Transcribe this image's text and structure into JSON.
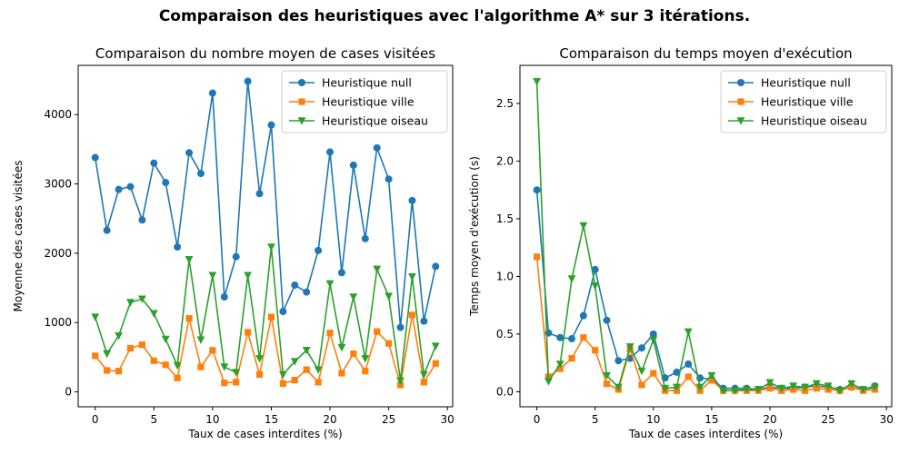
{
  "figure": {
    "suptitle": "Comparaison des heuristiques avec l'algorithme A* sur 3 itérations."
  },
  "chart_data": [
    {
      "type": "line",
      "title": "Comparaison du nombre moyen de cases visitées",
      "xlabel": "Taux de cases interdites (%)",
      "ylabel": "Moyenne des cases visitées",
      "x": [
        0,
        1,
        2,
        3,
        4,
        5,
        6,
        7,
        8,
        9,
        10,
        11,
        12,
        13,
        14,
        15,
        16,
        17,
        18,
        19,
        20,
        21,
        22,
        23,
        24,
        25,
        26,
        27,
        28,
        29
      ],
      "xlim": [
        -1.45,
        30.45
      ],
      "ylim": [
        -215,
        4710
      ],
      "xticks": [
        0,
        5,
        10,
        15,
        20,
        25,
        30
      ],
      "yticks": [
        0,
        1000,
        2000,
        3000,
        4000
      ],
      "legend": "top-right",
      "grid": false,
      "series": [
        {
          "name": "Heuristique null",
          "color": "#1f77b4",
          "marker": "circle",
          "values": [
            3380,
            2330,
            2920,
            2960,
            2480,
            3300,
            3020,
            2090,
            3450,
            3150,
            4310,
            1370,
            1950,
            4480,
            2860,
            3850,
            1160,
            1540,
            1440,
            2040,
            3460,
            1720,
            3270,
            2210,
            3520,
            3070,
            930,
            2760,
            1020,
            1810
          ]
        },
        {
          "name": "Heuristique ville",
          "color": "#ff7f0e",
          "marker": "square",
          "values": [
            520,
            310,
            300,
            630,
            680,
            450,
            390,
            200,
            1060,
            360,
            600,
            130,
            140,
            860,
            250,
            1080,
            120,
            170,
            320,
            140,
            850,
            270,
            550,
            300,
            870,
            700,
            100,
            1110,
            140,
            410
          ]
        },
        {
          "name": "Heuristique oiseau",
          "color": "#2ca02c",
          "marker": "triangle-down",
          "values": [
            1080,
            550,
            810,
            1290,
            1340,
            1130,
            760,
            380,
            1910,
            750,
            1680,
            360,
            280,
            1680,
            480,
            2090,
            250,
            440,
            600,
            320,
            1560,
            640,
            1370,
            480,
            1770,
            1380,
            160,
            1660,
            250,
            660
          ]
        }
      ]
    },
    {
      "type": "line",
      "title": "Comparaison du temps moyen d'exécution",
      "xlabel": "Taux de cases interdites (%)",
      "ylabel": "Temps moyen d'exécution (s)",
      "x": [
        0,
        1,
        2,
        3,
        4,
        5,
        6,
        7,
        8,
        9,
        10,
        11,
        12,
        13,
        14,
        15,
        16,
        17,
        18,
        19,
        20,
        21,
        22,
        23,
        24,
        25,
        26,
        27,
        28,
        29
      ],
      "xlim": [
        -1.45,
        30.45
      ],
      "ylim": [
        -0.13,
        2.83
      ],
      "xticks": [
        0,
        5,
        10,
        15,
        20,
        25,
        30
      ],
      "yticks": [
        0.0,
        0.5,
        1.0,
        1.5,
        2.0,
        2.5
      ],
      "legend": "top-right",
      "grid": false,
      "series": [
        {
          "name": "Heuristique null",
          "color": "#1f77b4",
          "marker": "circle",
          "values": [
            1.75,
            0.51,
            0.47,
            0.46,
            0.66,
            1.06,
            0.62,
            0.27,
            0.29,
            0.38,
            0.5,
            0.12,
            0.17,
            0.24,
            0.12,
            0.11,
            0.03,
            0.03,
            0.03,
            0.02,
            0.04,
            0.03,
            0.03,
            0.04,
            0.05,
            0.04,
            0.02,
            0.04,
            0.02,
            0.05
          ]
        },
        {
          "name": "Heuristique ville",
          "color": "#ff7f0e",
          "marker": "square",
          "values": [
            1.17,
            0.13,
            0.2,
            0.29,
            0.47,
            0.36,
            0.07,
            0.02,
            0.37,
            0.06,
            0.16,
            0.01,
            0.01,
            0.13,
            0.01,
            0.1,
            0.01,
            0.01,
            0.01,
            0.01,
            0.03,
            0.01,
            0.02,
            0.01,
            0.03,
            0.02,
            0.01,
            0.04,
            0.01,
            0.02
          ]
        },
        {
          "name": "Heuristique oiseau",
          "color": "#2ca02c",
          "marker": "triangle-down",
          "values": [
            2.69,
            0.09,
            0.24,
            0.98,
            1.44,
            0.92,
            0.14,
            0.04,
            0.39,
            0.18,
            0.45,
            0.03,
            0.04,
            0.52,
            0.04,
            0.14,
            0.01,
            0.01,
            0.02,
            0.02,
            0.08,
            0.03,
            0.05,
            0.04,
            0.07,
            0.05,
            0.01,
            0.07,
            0.02,
            0.04
          ]
        }
      ]
    }
  ]
}
